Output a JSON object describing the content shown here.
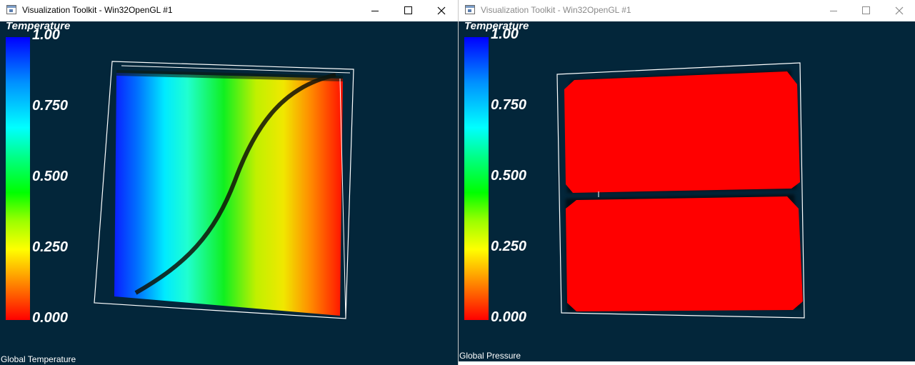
{
  "windows": [
    {
      "title": "Visualization Toolkit - Win32OpenGL #1",
      "scalar_bar": {
        "title": "Temperature",
        "ticks": [
          "1.00",
          "0.750",
          "0.500",
          "0.250",
          "0.000"
        ]
      },
      "corner_label": "Global Temperature"
    },
    {
      "title": "Visualization Toolkit - Win32OpenGL #1",
      "scalar_bar": {
        "title": "Temperature",
        "ticks": [
          "1.00",
          "0.750",
          "0.500",
          "0.250",
          "0.000"
        ]
      },
      "corner_label": "Global Pressure"
    }
  ],
  "colors": {
    "viewport_background": "#03263a",
    "outline": "#ffffff",
    "pressure_fill": "#ff0000"
  }
}
